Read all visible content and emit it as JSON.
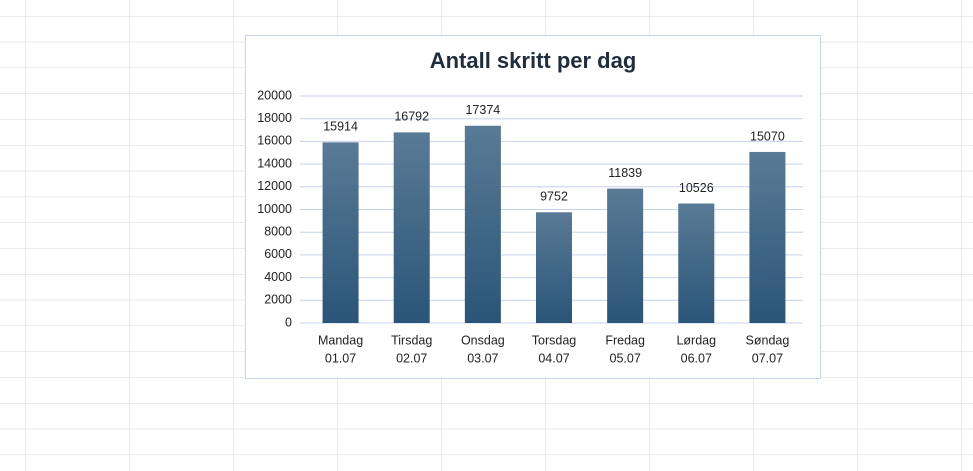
{
  "chart_data": {
    "type": "bar",
    "title": "Antall skritt per dag",
    "categories": [
      [
        "Mandag",
        "01.07"
      ],
      [
        "Tirsdag",
        "02.07"
      ],
      [
        "Onsdag",
        "03.07"
      ],
      [
        "Torsdag",
        "04.07"
      ],
      [
        "Fredag",
        "05.07"
      ],
      [
        "Lørdag",
        "06.07"
      ],
      [
        "Søndag",
        "07.07"
      ]
    ],
    "values": [
      15914,
      16792,
      17374,
      9752,
      11839,
      10526,
      15070
    ],
    "color": "#2a5578",
    "ylim": [
      0,
      20000
    ],
    "yticks": [
      0,
      2000,
      4000,
      6000,
      8000,
      10000,
      12000,
      14000,
      16000,
      18000,
      20000
    ],
    "grid": true,
    "data_labels": true
  }
}
